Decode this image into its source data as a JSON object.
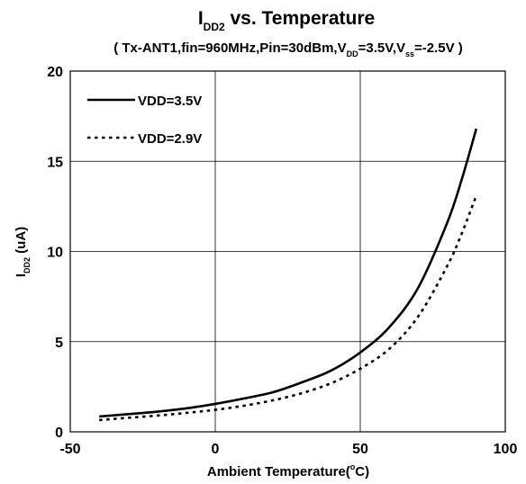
{
  "chart_data": {
    "type": "line",
    "title": {
      "main": "I",
      "sub": "DD2",
      "rest": " vs. Temperature"
    },
    "subtitle": {
      "part1": "( Tx-ANT1,fin=960MHz,Pin=30dBm,V",
      "sub1": "DD",
      "part2": "=3.5V,V",
      "sub2": "ss",
      "part3": "=-2.5V )"
    },
    "xlabel": {
      "part1": "Ambient Temperature(",
      "sup": "o",
      "part2": "C)"
    },
    "ylabel": {
      "main": "I",
      "sub": "DD2",
      "rest": " (uA)"
    },
    "xlim": [
      -50,
      100
    ],
    "ylim": [
      0,
      20
    ],
    "x_ticks": [
      -50,
      0,
      50,
      100
    ],
    "x_tick_labels": [
      "-50",
      "0",
      "50",
      "100"
    ],
    "y_ticks": [
      0,
      5,
      10,
      15,
      20
    ],
    "y_tick_labels": [
      "0",
      "5",
      "10",
      "15",
      "20"
    ],
    "grid": true,
    "legend_position": "top-left",
    "series": [
      {
        "name": "VDD=3.5V",
        "style": "solid",
        "color": "#000000",
        "x": [
          -40,
          -30,
          -20,
          -10,
          0,
          10,
          20,
          30,
          40,
          50,
          60,
          70,
          80,
          85,
          90
        ],
        "y": [
          0.85,
          0.98,
          1.12,
          1.3,
          1.55,
          1.85,
          2.2,
          2.75,
          3.4,
          4.4,
          5.8,
          8.0,
          11.6,
          14.0,
          16.8
        ]
      },
      {
        "name": "VDD=2.9V",
        "style": "dotted",
        "color": "#000000",
        "x": [
          -40,
          -30,
          -20,
          -10,
          0,
          10,
          20,
          30,
          40,
          50,
          60,
          70,
          80,
          85,
          90
        ],
        "y": [
          0.65,
          0.78,
          0.9,
          1.05,
          1.22,
          1.45,
          1.75,
          2.15,
          2.7,
          3.5,
          4.6,
          6.4,
          9.2,
          11.0,
          13.1
        ]
      }
    ]
  }
}
